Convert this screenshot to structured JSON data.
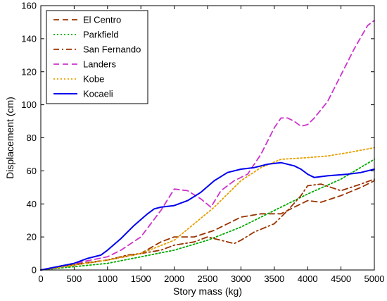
{
  "chart_data": {
    "type": "line",
    "xlabel": "Story mass (kg)",
    "ylabel": "Displacement (cm)",
    "xlim": [
      0,
      5000
    ],
    "ylim": [
      0,
      160
    ],
    "xticks": [
      0,
      500,
      1000,
      1500,
      2000,
      2500,
      3000,
      3500,
      4000,
      4500,
      5000
    ],
    "yticks": [
      0,
      20,
      40,
      60,
      80,
      100,
      120,
      140,
      160
    ],
    "grid": false,
    "legend_position": "top-left",
    "series": [
      {
        "name": "El Centro",
        "color": "#993300",
        "dash": "dashed",
        "x": [
          0,
          300,
          600,
          1000,
          1500,
          1800,
          2000,
          2300,
          2600,
          2800,
          3000,
          3300,
          3600,
          3800,
          4000,
          4200,
          4500,
          4800,
          5000
        ],
        "y": [
          0,
          2,
          4,
          6,
          10,
          17,
          20,
          20,
          24,
          28,
          32,
          34,
          34,
          38,
          42,
          41,
          45,
          50,
          54
        ]
      },
      {
        "name": "Parkfield",
        "color": "#00aa00",
        "dash": "dotted",
        "x": [
          0,
          500,
          1000,
          1500,
          2000,
          2500,
          3000,
          3500,
          4000,
          4500,
          5000
        ],
        "y": [
          0,
          2,
          4,
          8,
          12,
          18,
          26,
          36,
          46,
          55,
          67
        ]
      },
      {
        "name": "San Fernando",
        "color": "#993300",
        "dash": "dashdot",
        "x": [
          0,
          500,
          1000,
          1300,
          1500,
          1800,
          2000,
          2300,
          2500,
          2800,
          2900,
          3000,
          3200,
          3500,
          3700,
          3900,
          4000,
          4200,
          4500,
          4800,
          5000
        ],
        "y": [
          0,
          3,
          6,
          9,
          10,
          12,
          15,
          17,
          20,
          17,
          16,
          18,
          23,
          28,
          36,
          45,
          51,
          52,
          48,
          52,
          55
        ]
      },
      {
        "name": "Landers",
        "color": "#cc33cc",
        "dash": "dashed",
        "x": [
          0,
          500,
          1000,
          1200,
          1500,
          1800,
          2000,
          2200,
          2400,
          2550,
          2700,
          2900,
          3100,
          3300,
          3500,
          3600,
          3700,
          3800,
          3900,
          4000,
          4100,
          4300,
          4500,
          4700,
          4900,
          5000
        ],
        "y": [
          0,
          4,
          8,
          12,
          20,
          36,
          49,
          48,
          43,
          38,
          48,
          54,
          58,
          70,
          86,
          92,
          92,
          90,
          87,
          88,
          92,
          102,
          118,
          134,
          148,
          151
        ]
      },
      {
        "name": "Kobe",
        "color": "#e6a000",
        "dash": "dotted",
        "x": [
          0,
          500,
          1000,
          1500,
          2000,
          2300,
          2600,
          2800,
          3000,
          3300,
          3600,
          4000,
          4300,
          4600,
          5000
        ],
        "y": [
          0,
          3,
          6,
          10,
          18,
          28,
          38,
          46,
          54,
          62,
          67,
          68,
          69,
          71,
          74
        ]
      },
      {
        "name": "Kocaeli",
        "color": "#0000ee",
        "dash": "solid",
        "x": [
          0,
          500,
          700,
          900,
          1000,
          1200,
          1400,
          1600,
          1700,
          1800,
          2000,
          2200,
          2400,
          2600,
          2800,
          3000,
          3200,
          3400,
          3600,
          3800,
          3900,
          4000,
          4100,
          4300,
          4600,
          4800,
          5000
        ],
        "y": [
          0,
          4,
          7,
          9,
          12,
          19,
          27,
          34,
          37,
          38,
          39,
          42,
          47,
          54,
          59,
          61,
          62,
          64,
          65,
          63,
          61,
          58,
          56,
          57,
          58,
          59,
          61
        ]
      }
    ]
  }
}
